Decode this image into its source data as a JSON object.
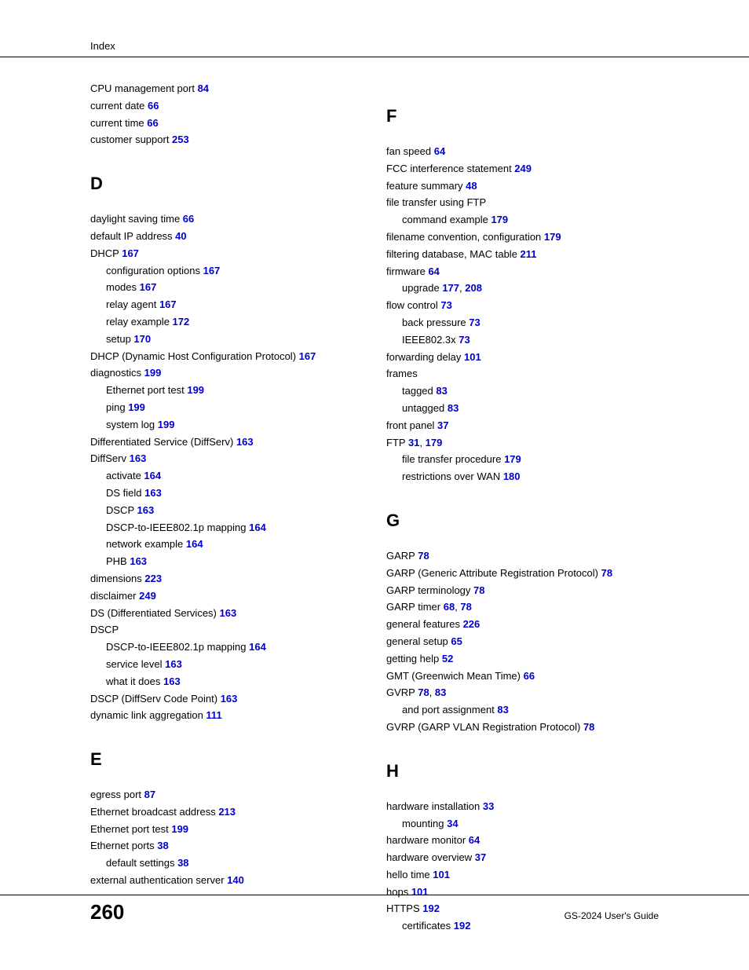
{
  "header": {
    "title": "Index"
  },
  "footer": {
    "page_number": "260",
    "guide_title": "GS-2024 User's Guide"
  },
  "colors": {
    "link": "#0000cc",
    "text": "#000000",
    "background": "#ffffff"
  },
  "left_column": {
    "continuation": [
      {
        "text": "CPU management port ",
        "page": "84"
      },
      {
        "text": "current date ",
        "page": "66"
      },
      {
        "text": "current time ",
        "page": "66"
      },
      {
        "text": "customer support ",
        "page": "253"
      }
    ],
    "sections": [
      {
        "letter": "D",
        "entries": [
          {
            "text": "daylight saving time ",
            "page": "66"
          },
          {
            "text": "default IP address ",
            "page": "40"
          },
          {
            "text": "DHCP ",
            "page": "167"
          },
          {
            "text": "configuration options ",
            "page": "167",
            "sub": true
          },
          {
            "text": "modes ",
            "page": "167",
            "sub": true
          },
          {
            "text": "relay agent ",
            "page": "167",
            "sub": true
          },
          {
            "text": "relay example ",
            "page": "172",
            "sub": true
          },
          {
            "text": "setup ",
            "page": "170",
            "sub": true
          },
          {
            "text": "DHCP (Dynamic Host Configuration Protocol) ",
            "page": "167"
          },
          {
            "text": "diagnostics ",
            "page": "199"
          },
          {
            "text": "Ethernet port test ",
            "page": "199",
            "sub": true
          },
          {
            "text": "ping ",
            "page": "199",
            "sub": true
          },
          {
            "text": "system log ",
            "page": "199",
            "sub": true
          },
          {
            "text": "Differentiated Service (DiffServ) ",
            "page": "163"
          },
          {
            "text": "DiffServ ",
            "page": "163"
          },
          {
            "text": "activate ",
            "page": "164",
            "sub": true
          },
          {
            "text": "DS field ",
            "page": "163",
            "sub": true
          },
          {
            "text": "DSCP ",
            "page": "163",
            "sub": true
          },
          {
            "text": "DSCP-to-IEEE802.1p mapping ",
            "page": "164",
            "sub": true
          },
          {
            "text": "network example ",
            "page": "164",
            "sub": true
          },
          {
            "text": "PHB ",
            "page": "163",
            "sub": true
          },
          {
            "text": "dimensions ",
            "page": "223"
          },
          {
            "text": "disclaimer ",
            "page": "249"
          },
          {
            "text": "DS (Differentiated Services) ",
            "page": "163"
          },
          {
            "text": "DSCP",
            "page": null
          },
          {
            "text": "DSCP-to-IEEE802.1p mapping ",
            "page": "164",
            "sub": true
          },
          {
            "text": "service level ",
            "page": "163",
            "sub": true
          },
          {
            "text": "what it does ",
            "page": "163",
            "sub": true
          },
          {
            "text": "DSCP (DiffServ Code Point) ",
            "page": "163"
          },
          {
            "text": "dynamic link aggregation ",
            "page": "111"
          }
        ]
      },
      {
        "letter": "E",
        "entries": [
          {
            "text": "egress port ",
            "page": "87"
          },
          {
            "text": "Ethernet broadcast address ",
            "page": "213"
          },
          {
            "text": "Ethernet port test ",
            "page": "199"
          },
          {
            "text": "Ethernet ports ",
            "page": "38"
          },
          {
            "text": "default settings ",
            "page": "38",
            "sub": true
          },
          {
            "text": "external authentication server ",
            "page": "140"
          }
        ]
      }
    ]
  },
  "right_column": {
    "sections": [
      {
        "letter": "F",
        "entries": [
          {
            "text": "fan speed ",
            "page": "64"
          },
          {
            "text": "FCC interference statement ",
            "page": "249"
          },
          {
            "text": "feature summary ",
            "page": "48"
          },
          {
            "text": "file transfer using FTP",
            "page": null
          },
          {
            "text": "command example ",
            "page": "179",
            "sub": true
          },
          {
            "text": "filename convention, configuration ",
            "page": "179"
          },
          {
            "text": "filtering database, MAC table ",
            "page": "211"
          },
          {
            "text": "firmware ",
            "page": "64"
          },
          {
            "text": "upgrade ",
            "pages": [
              "177",
              "208"
            ],
            "sub": true
          },
          {
            "text": "flow control ",
            "page": "73"
          },
          {
            "text": "back pressure ",
            "page": "73",
            "sub": true
          },
          {
            "text": "IEEE802.3x ",
            "page": "73",
            "sub": true
          },
          {
            "text": "forwarding delay ",
            "page": "101"
          },
          {
            "text": "frames",
            "page": null
          },
          {
            "text": "tagged ",
            "page": "83",
            "sub": true
          },
          {
            "text": "untagged ",
            "page": "83",
            "sub": true
          },
          {
            "text": "front panel ",
            "page": "37"
          },
          {
            "text": "FTP ",
            "pages": [
              "31",
              "179"
            ]
          },
          {
            "text": "file transfer procedure ",
            "page": "179",
            "sub": true
          },
          {
            "text": "restrictions over WAN ",
            "page": "180",
            "sub": true
          }
        ]
      },
      {
        "letter": "G",
        "entries": [
          {
            "text": "GARP ",
            "page": "78"
          },
          {
            "text": "GARP (Generic Attribute Registration Protocol) ",
            "page": "78"
          },
          {
            "text": "GARP terminology ",
            "page": "78"
          },
          {
            "text": "GARP timer ",
            "pages": [
              "68",
              "78"
            ]
          },
          {
            "text": "general features ",
            "page": "226"
          },
          {
            "text": "general setup ",
            "page": "65"
          },
          {
            "text": "getting help ",
            "page": "52"
          },
          {
            "text": "GMT (Greenwich Mean Time) ",
            "page": "66"
          },
          {
            "text": "GVRP ",
            "pages": [
              "78",
              "83"
            ]
          },
          {
            "text": "and port assignment ",
            "page": "83",
            "sub": true
          },
          {
            "text": "GVRP (GARP VLAN Registration Protocol) ",
            "page": "78"
          }
        ]
      },
      {
        "letter": "H",
        "entries": [
          {
            "text": "hardware installation ",
            "page": "33"
          },
          {
            "text": "mounting ",
            "page": "34",
            "sub": true
          },
          {
            "text": "hardware monitor ",
            "page": "64"
          },
          {
            "text": "hardware overview ",
            "page": "37"
          },
          {
            "text": "hello time ",
            "page": "101"
          },
          {
            "text": "hops ",
            "page": "101"
          },
          {
            "text": "HTTPS ",
            "page": "192"
          },
          {
            "text": "certificates ",
            "page": "192",
            "sub": true
          }
        ]
      }
    ]
  }
}
